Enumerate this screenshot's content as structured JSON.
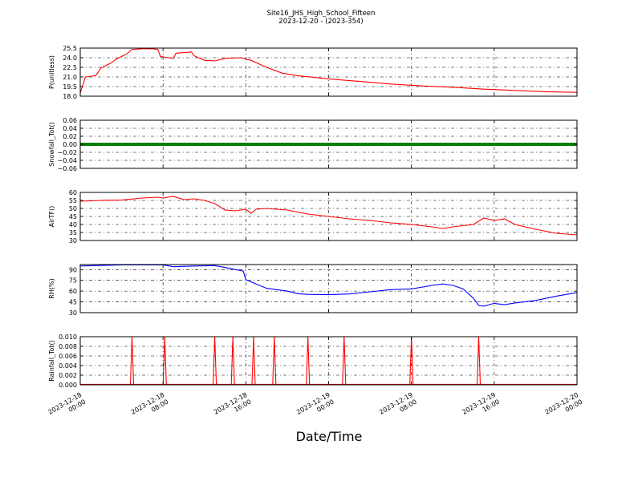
{
  "title": "Site16_JHS_High_School_Fifteen",
  "subtitle": "2023-12-20 - (2023-354)",
  "chart_data": {
    "type": "line",
    "xlabel": "Date/Time",
    "x_range": [
      "2023-12-18 00:00",
      "2023-12-20 00:00"
    ],
    "x_ticks": [
      {
        "at": "2023-12-18 00:00",
        "line1": "2023-12-18",
        "line2": "00:00"
      },
      {
        "at": "2023-12-18 08:00",
        "line1": "2023-12-18",
        "line2": "08:00"
      },
      {
        "at": "2023-12-18 16:00",
        "line1": "2023-12-18",
        "line2": "16:00"
      },
      {
        "at": "2023-12-19 00:00",
        "line1": "2023-12-19",
        "line2": "00:00"
      },
      {
        "at": "2023-12-19 08:00",
        "line1": "2023-12-19",
        "line2": "08:00"
      },
      {
        "at": "2023-12-19 16:00",
        "line1": "2023-12-19",
        "line2": "16:00"
      },
      {
        "at": "2023-12-20 00:00",
        "line1": "2023-12-20",
        "line2": "00:00"
      }
    ],
    "grid": true,
    "panels": [
      {
        "ylabel": "P(unitless)",
        "ylim": [
          18.0,
          25.5
        ],
        "yticks": [
          "18.0",
          "19.5",
          "21.0",
          "22.5",
          "24.0",
          "25.5"
        ],
        "ytick_values": [
          18.0,
          19.5,
          21.0,
          22.5,
          24.0,
          25.5
        ],
        "color": "#ff0000",
        "style": "line",
        "points": [
          [
            "2023-12-18 00:00",
            18.5
          ],
          [
            "2023-12-18 00:30",
            21.0
          ],
          [
            "2023-12-18 01:30",
            21.2
          ],
          [
            "2023-12-18 02:00",
            22.4
          ],
          [
            "2023-12-18 03:00",
            23.2
          ],
          [
            "2023-12-18 03:30",
            23.8
          ],
          [
            "2023-12-18 04:00",
            24.2
          ],
          [
            "2023-12-18 04:30",
            24.6
          ],
          [
            "2023-12-18 05:00",
            25.3
          ],
          [
            "2023-12-18 06:00",
            25.4
          ],
          [
            "2023-12-18 07:00",
            25.4
          ],
          [
            "2023-12-18 07:30",
            25.3
          ],
          [
            "2023-12-18 07:45",
            24.2
          ],
          [
            "2023-12-18 08:30",
            24.0
          ],
          [
            "2023-12-18 09:00",
            23.9
          ],
          [
            "2023-12-18 09:15",
            24.7
          ],
          [
            "2023-12-18 10:00",
            24.8
          ],
          [
            "2023-12-18 10:45",
            24.9
          ],
          [
            "2023-12-18 11:00",
            24.3
          ],
          [
            "2023-12-18 12:00",
            23.6
          ],
          [
            "2023-12-18 13:00",
            23.5
          ],
          [
            "2023-12-18 14:00",
            23.9
          ],
          [
            "2023-12-18 15:30",
            24.0
          ],
          [
            "2023-12-18 16:30",
            23.6
          ],
          [
            "2023-12-18 18:00",
            22.5
          ],
          [
            "2023-12-18 19:30",
            21.6
          ],
          [
            "2023-12-18 21:00",
            21.2
          ],
          [
            "2023-12-19 00:00",
            20.7
          ],
          [
            "2023-12-19 03:00",
            20.3
          ],
          [
            "2023-12-19 06:00",
            19.9
          ],
          [
            "2023-12-19 09:00",
            19.6
          ],
          [
            "2023-12-19 12:00",
            19.4
          ],
          [
            "2023-12-19 15:00",
            19.1
          ],
          [
            "2023-12-19 18:00",
            18.9
          ],
          [
            "2023-12-19 21:00",
            18.7
          ],
          [
            "2023-12-20 00:00",
            18.6
          ]
        ]
      },
      {
        "ylabel": "Snowfall_Tot()",
        "ylim": [
          -0.06,
          0.06
        ],
        "yticks": [
          "−0.06",
          "−0.04",
          "−0.02",
          "0.00",
          "0.02",
          "0.04",
          "0.06"
        ],
        "ytick_values": [
          -0.06,
          -0.04,
          -0.02,
          0.0,
          0.02,
          0.04,
          0.06
        ],
        "color": "#008000",
        "style": "markers",
        "constant_value": 0.0
      },
      {
        "ylabel": "AirTF()",
        "ylim": [
          30,
          60
        ],
        "yticks": [
          "30",
          "35",
          "40",
          "45",
          "50",
          "55",
          "60"
        ],
        "ytick_values": [
          30,
          35,
          40,
          45,
          50,
          55,
          60
        ],
        "color": "#ff0000",
        "style": "line",
        "points": [
          [
            "2023-12-18 00:00",
            54.5
          ],
          [
            "2023-12-18 02:00",
            55.0
          ],
          [
            "2023-12-18 04:00",
            55.2
          ],
          [
            "2023-12-18 06:00",
            56.5
          ],
          [
            "2023-12-18 07:30",
            57.0
          ],
          [
            "2023-12-18 08:00",
            56.5
          ],
          [
            "2023-12-18 09:00",
            57.5
          ],
          [
            "2023-12-18 10:00",
            55.5
          ],
          [
            "2023-12-18 11:00",
            56.0
          ],
          [
            "2023-12-18 12:00",
            55.0
          ],
          [
            "2023-12-18 13:00",
            53.0
          ],
          [
            "2023-12-18 14:00",
            49.0
          ],
          [
            "2023-12-18 15:00",
            48.5
          ],
          [
            "2023-12-18 16:00",
            49.5
          ],
          [
            "2023-12-18 16:30",
            47.0
          ],
          [
            "2023-12-18 17:00",
            49.5
          ],
          [
            "2023-12-18 18:00",
            50.0
          ],
          [
            "2023-12-18 20:00",
            49.0
          ],
          [
            "2023-12-18 22:00",
            46.5
          ],
          [
            "2023-12-19 00:00",
            45.0
          ],
          [
            "2023-12-19 02:00",
            43.5
          ],
          [
            "2023-12-19 04:00",
            42.5
          ],
          [
            "2023-12-19 06:00",
            41.0
          ],
          [
            "2023-12-19 08:00",
            40.0
          ],
          [
            "2023-12-19 10:00",
            38.5
          ],
          [
            "2023-12-19 11:00",
            37.5
          ],
          [
            "2023-12-19 12:00",
            38.5
          ],
          [
            "2023-12-19 14:00",
            40.0
          ],
          [
            "2023-12-19 15:00",
            44.0
          ],
          [
            "2023-12-19 16:00",
            42.5
          ],
          [
            "2023-12-19 17:00",
            43.5
          ],
          [
            "2023-12-19 18:00",
            40.0
          ],
          [
            "2023-12-19 20:00",
            37.0
          ],
          [
            "2023-12-19 22:00",
            34.5
          ],
          [
            "2023-12-20 00:00",
            33.5
          ]
        ]
      },
      {
        "ylabel": "RH(%)",
        "ylim": [
          30,
          97
        ],
        "yticks": [
          "30",
          "45",
          "60",
          "75",
          "90"
        ],
        "ytick_values": [
          30,
          45,
          60,
          75,
          90
        ],
        "color": "#0000ff",
        "style": "line",
        "points": [
          [
            "2023-12-18 00:00",
            95.0
          ],
          [
            "2023-12-18 04:00",
            96.5
          ],
          [
            "2023-12-18 08:00",
            96.5
          ],
          [
            "2023-12-18 09:00",
            94.0
          ],
          [
            "2023-12-18 11:00",
            95.0
          ],
          [
            "2023-12-18 13:00",
            95.5
          ],
          [
            "2023-12-18 14:00",
            93.0
          ],
          [
            "2023-12-18 15:00",
            90.0
          ],
          [
            "2023-12-18 15:45",
            88.0
          ],
          [
            "2023-12-18 16:00",
            76.0
          ],
          [
            "2023-12-18 17:00",
            70.0
          ],
          [
            "2023-12-18 18:00",
            64.0
          ],
          [
            "2023-12-18 19:00",
            62.0
          ],
          [
            "2023-12-18 20:00",
            60.0
          ],
          [
            "2023-12-18 21:00",
            56.5
          ],
          [
            "2023-12-18 22:00",
            55.5
          ],
          [
            "2023-12-19 00:00",
            55.0
          ],
          [
            "2023-12-19 02:00",
            56.0
          ],
          [
            "2023-12-19 04:00",
            59.0
          ],
          [
            "2023-12-19 06:00",
            62.0
          ],
          [
            "2023-12-19 08:00",
            63.0
          ],
          [
            "2023-12-19 10:00",
            68.0
          ],
          [
            "2023-12-19 11:00",
            70.0
          ],
          [
            "2023-12-19 12:00",
            68.0
          ],
          [
            "2023-12-19 13:00",
            63.0
          ],
          [
            "2023-12-19 14:00",
            50.0
          ],
          [
            "2023-12-19 14:30",
            40.0
          ],
          [
            "2023-12-19 15:00",
            39.0
          ],
          [
            "2023-12-19 16:00",
            43.0
          ],
          [
            "2023-12-19 17:00",
            41.0
          ],
          [
            "2023-12-19 18:00",
            43.5
          ],
          [
            "2023-12-19 20:00",
            47.0
          ],
          [
            "2023-12-19 22:00",
            53.0
          ],
          [
            "2023-12-20 00:00",
            58.0
          ]
        ]
      },
      {
        "ylabel": "Rainfall_Tot()",
        "ylim": [
          0.0,
          0.01
        ],
        "yticks": [
          "0.000",
          "0.002",
          "0.004",
          "0.006",
          "0.008",
          "0.010"
        ],
        "ytick_values": [
          0.0,
          0.002,
          0.004,
          0.006,
          0.008,
          0.01
        ],
        "color": "#ff0000",
        "style": "spikes",
        "spike_value": 0.01,
        "spikes": [
          "2023-12-18 05:00",
          "2023-12-18 08:10",
          "2023-12-18 13:00",
          "2023-12-18 14:45",
          "2023-12-18 16:45",
          "2023-12-18 18:45",
          "2023-12-18 22:00",
          "2023-12-19 01:30",
          "2023-12-19 08:00",
          "2023-12-19 14:30"
        ]
      }
    ]
  }
}
